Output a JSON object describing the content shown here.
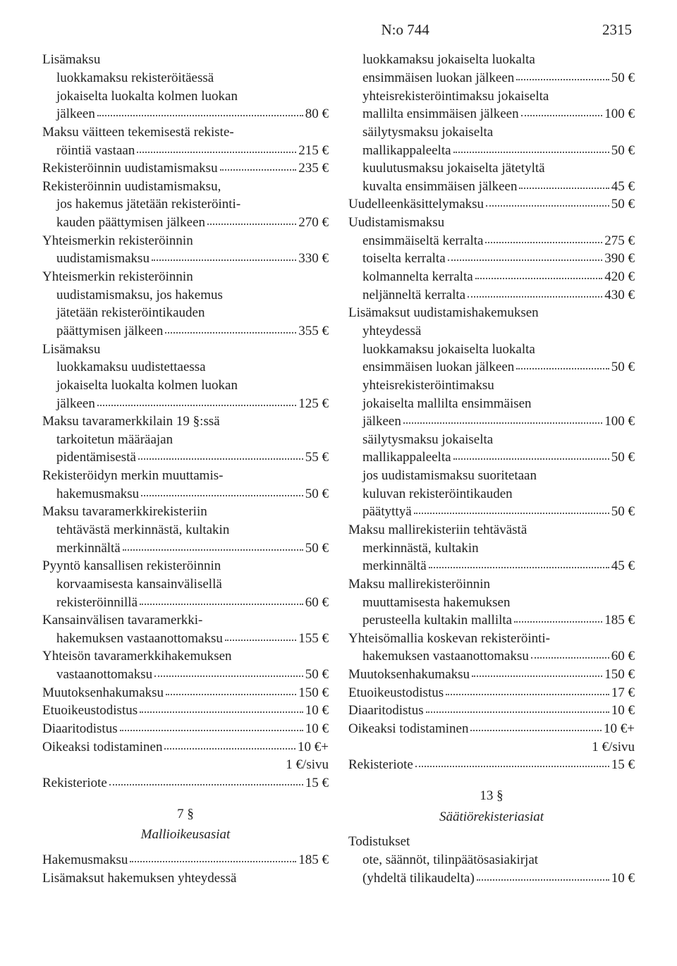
{
  "header": {
    "docnum": "N:o 744",
    "pagenum": "2315"
  },
  "left": [
    {
      "type": "plain",
      "text": "Lisämaksu"
    },
    {
      "type": "plain",
      "indent": 1,
      "text": "luokkamaksu rekisteröitäessä"
    },
    {
      "type": "plain",
      "indent": 1,
      "text": "jokaiselta luokalta kolmen luokan"
    },
    {
      "type": "priced",
      "indent": 1,
      "label": "jälkeen",
      "price": "80 €"
    },
    {
      "type": "plain",
      "text": "Maksu väitteen tekemisestä rekiste-"
    },
    {
      "type": "priced",
      "indent": 1,
      "label": "röintiä vastaan",
      "price": "215 €"
    },
    {
      "type": "priced",
      "label": "Rekisteröinnin uudistamismaksu",
      "price": "235 €"
    },
    {
      "type": "plain",
      "text": "Rekisteröinnin uudistamismaksu,"
    },
    {
      "type": "plain",
      "indent": 1,
      "text": "jos hakemus jätetään rekisteröinti-"
    },
    {
      "type": "priced",
      "indent": 1,
      "label": "kauden päättymisen jälkeen",
      "price": "270 €"
    },
    {
      "type": "plain",
      "text": "Yhteismerkin rekisteröinnin"
    },
    {
      "type": "priced",
      "indent": 1,
      "label": "uudistamismaksu",
      "price": "330 €"
    },
    {
      "type": "plain",
      "text": "Yhteismerkin rekisteröinnin"
    },
    {
      "type": "plain",
      "indent": 1,
      "text": "uudistamismaksu, jos hakemus"
    },
    {
      "type": "plain",
      "indent": 1,
      "text": "jätetään rekisteröintikauden"
    },
    {
      "type": "priced",
      "indent": 1,
      "label": "päättymisen jälkeen",
      "price": "355 €"
    },
    {
      "type": "plain",
      "text": "Lisämaksu"
    },
    {
      "type": "plain",
      "indent": 1,
      "text": "luokkamaksu uudistettaessa"
    },
    {
      "type": "plain",
      "indent": 1,
      "text": "jokaiselta luokalta kolmen luokan"
    },
    {
      "type": "priced",
      "indent": 1,
      "label": "jälkeen",
      "price": "125 €"
    },
    {
      "type": "plain",
      "text": "Maksu tavaramerkkilain 19 §:ssä"
    },
    {
      "type": "plain",
      "indent": 1,
      "text": "tarkoitetun määräajan"
    },
    {
      "type": "priced",
      "indent": 1,
      "label": "pidentämisestä",
      "price": "55 €"
    },
    {
      "type": "plain",
      "text": "Rekisteröidyn merkin muuttamis-"
    },
    {
      "type": "priced",
      "indent": 1,
      "label": "hakemusmaksu",
      "price": "50 €"
    },
    {
      "type": "plain",
      "text": "Maksu tavaramerkkirekisteriin"
    },
    {
      "type": "plain",
      "indent": 1,
      "text": "tehtävästä merkinnästä, kultakin"
    },
    {
      "type": "priced",
      "indent": 1,
      "label": "merkinnältä",
      "price": "50 €"
    },
    {
      "type": "plain",
      "text": "Pyyntö kansallisen rekisteröinnin"
    },
    {
      "type": "plain",
      "indent": 1,
      "text": "korvaamisesta kansainvälisellä"
    },
    {
      "type": "priced",
      "indent": 1,
      "label": "rekisteröinnillä",
      "price": "60 €"
    },
    {
      "type": "plain",
      "text": "Kansainvälisen tavaramerkki-"
    },
    {
      "type": "priced",
      "indent": 1,
      "label": "hakemuksen vastaanottomaksu",
      "price": "155 €"
    },
    {
      "type": "plain",
      "text": "Yhteisön tavaramerkkihakemuksen"
    },
    {
      "type": "priced",
      "indent": 1,
      "label": "vastaanottomaksu",
      "price": "50 €"
    },
    {
      "type": "priced",
      "label": "Muutoksenhakumaksu",
      "price": "150 €"
    },
    {
      "type": "priced",
      "label": "Etuoikeustodistus",
      "price": "10 €"
    },
    {
      "type": "priced",
      "label": "Diaaritodistus",
      "price": "10 €"
    },
    {
      "type": "priced",
      "label": "Oikeaksi todistaminen",
      "price": "10 €+"
    },
    {
      "type": "right",
      "text": "1 €/sivu"
    },
    {
      "type": "priced",
      "label": "Rekisteriote",
      "price": "15 €"
    },
    {
      "type": "secnum",
      "text": "7 §"
    },
    {
      "type": "sectitle",
      "text": "Mallioikeusasiat"
    },
    {
      "type": "priced",
      "label": "Hakemusmaksu",
      "price": "185 €"
    },
    {
      "type": "plain",
      "text": "Lisämaksut hakemuksen yhteydessä"
    }
  ],
  "right": [
    {
      "type": "plain",
      "indent": 1,
      "text": "luokkamaksu jokaiselta luokalta"
    },
    {
      "type": "priced",
      "indent": 1,
      "label": "ensimmäisen luokan jälkeen",
      "price": "50 €"
    },
    {
      "type": "plain",
      "indent": 1,
      "text": "yhteisrekisteröintimaksu jokaiselta"
    },
    {
      "type": "priced",
      "indent": 1,
      "label": "mallilta ensimmäisen jälkeen",
      "price": "100 €"
    },
    {
      "type": "plain",
      "indent": 1,
      "text": "säilytysmaksu jokaiselta"
    },
    {
      "type": "priced",
      "indent": 1,
      "label": "mallikappaleelta",
      "price": "50 €"
    },
    {
      "type": "plain",
      "indent": 1,
      "text": "kuulutusmaksu jokaiselta jätetyltä"
    },
    {
      "type": "priced",
      "indent": 1,
      "label": "kuvalta ensimmäisen jälkeen",
      "price": "45 €"
    },
    {
      "type": "priced",
      "label": "Uudelleenkäsittelymaksu",
      "price": "50 €"
    },
    {
      "type": "plain",
      "text": "Uudistamismaksu"
    },
    {
      "type": "priced",
      "indent": 1,
      "label": "ensimmäiseltä kerralta",
      "price": "275 €"
    },
    {
      "type": "priced",
      "indent": 1,
      "label": "toiselta kerralta",
      "price": "390 €"
    },
    {
      "type": "priced",
      "indent": 1,
      "label": "kolmannelta kerralta",
      "price": "420 €"
    },
    {
      "type": "priced",
      "indent": 1,
      "label": "neljänneltä kerralta",
      "price": "430 €"
    },
    {
      "type": "plain",
      "text": "Lisämaksut uudistamishakemuksen"
    },
    {
      "type": "plain",
      "indent": 1,
      "text": "yhteydessä"
    },
    {
      "type": "plain",
      "indent": 1,
      "text": "luokkamaksu jokaiselta luokalta"
    },
    {
      "type": "priced",
      "indent": 1,
      "label": "ensimmäisen luokan jälkeen",
      "price": "50 €"
    },
    {
      "type": "plain",
      "indent": 1,
      "text": "yhteisrekisteröintimaksu"
    },
    {
      "type": "plain",
      "indent": 1,
      "text": "jokaiselta mallilta ensimmäisen"
    },
    {
      "type": "priced",
      "indent": 1,
      "label": "jälkeen",
      "price": "100 €"
    },
    {
      "type": "plain",
      "indent": 1,
      "text": "säilytysmaksu jokaiselta"
    },
    {
      "type": "priced",
      "indent": 1,
      "label": "mallikappaleelta",
      "price": "50 €"
    },
    {
      "type": "plain",
      "indent": 1,
      "text": "jos uudistamismaksu suoritetaan"
    },
    {
      "type": "plain",
      "indent": 1,
      "text": "kuluvan rekisteröintikauden"
    },
    {
      "type": "priced",
      "indent": 1,
      "label": "päätyttyä",
      "price": "50 €"
    },
    {
      "type": "plain",
      "text": "Maksu mallirekisteriin tehtävästä"
    },
    {
      "type": "plain",
      "indent": 1,
      "text": "merkinnästä, kultakin"
    },
    {
      "type": "priced",
      "indent": 1,
      "label": "merkinnältä",
      "price": "45 €"
    },
    {
      "type": "plain",
      "text": "Maksu mallirekisteröinnin"
    },
    {
      "type": "plain",
      "indent": 1,
      "text": "muuttamisesta hakemuksen"
    },
    {
      "type": "priced",
      "indent": 1,
      "label": "perusteella kultakin mallilta",
      "price": "185 €"
    },
    {
      "type": "plain",
      "text": "Yhteisömallia koskevan rekisteröinti-"
    },
    {
      "type": "priced",
      "indent": 1,
      "label": "hakemuksen vastaanottomaksu",
      "price": "60 €"
    },
    {
      "type": "priced",
      "label": "Muutoksenhakumaksu",
      "price": "150 €"
    },
    {
      "type": "priced",
      "label": "Etuoikeustodistus",
      "price": "17 €"
    },
    {
      "type": "priced",
      "label": "Diaaritodistus",
      "price": "10 €"
    },
    {
      "type": "priced",
      "label": "Oikeaksi todistaminen",
      "price": "10 €+"
    },
    {
      "type": "right",
      "text": "1 €/sivu"
    },
    {
      "type": "priced",
      "label": "Rekisteriote",
      "price": "15 €"
    },
    {
      "type": "secnum",
      "text": "13 §"
    },
    {
      "type": "sectitle",
      "text": "Säätiörekisteriasiat"
    },
    {
      "type": "plain",
      "text": "Todistukset"
    },
    {
      "type": "plain",
      "indent": 1,
      "text": "ote, säännöt, tilinpäätösasiakirjat"
    },
    {
      "type": "priced",
      "indent": 1,
      "label": "(yhdeltä tilikaudelta)",
      "price": "10 €"
    }
  ]
}
